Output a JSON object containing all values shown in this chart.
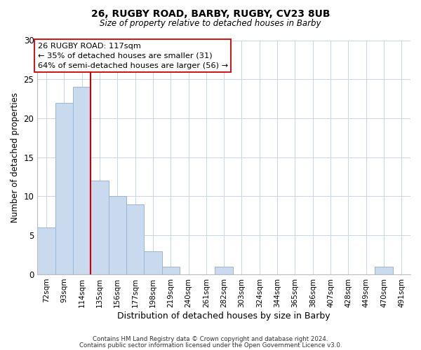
{
  "title1": "26, RUGBY ROAD, BARBY, RUGBY, CV23 8UB",
  "title2": "Size of property relative to detached houses in Barby",
  "xlabel": "Distribution of detached houses by size in Barby",
  "ylabel": "Number of detached properties",
  "bin_labels": [
    "72sqm",
    "93sqm",
    "114sqm",
    "135sqm",
    "156sqm",
    "177sqm",
    "198sqm",
    "219sqm",
    "240sqm",
    "261sqm",
    "282sqm",
    "303sqm",
    "324sqm",
    "344sqm",
    "365sqm",
    "386sqm",
    "407sqm",
    "428sqm",
    "449sqm",
    "470sqm",
    "491sqm"
  ],
  "bar_heights": [
    6,
    22,
    24,
    12,
    10,
    9,
    3,
    1,
    0,
    0,
    1,
    0,
    0,
    0,
    0,
    0,
    0,
    0,
    0,
    1,
    0
  ],
  "bar_color": "#c9d9ee",
  "bar_edge_color": "#9ab5d5",
  "red_line_x": 2,
  "red_line_color": "#cc0000",
  "annotation_text": "26 RUGBY ROAD: 117sqm\n← 35% of detached houses are smaller (31)\n64% of semi-detached houses are larger (56) →",
  "annotation_box_color": "#ffffff",
  "annotation_box_edge": "#cc0000",
  "ylim": [
    0,
    30
  ],
  "yticks": [
    0,
    5,
    10,
    15,
    20,
    25,
    30
  ],
  "footer1": "Contains HM Land Registry data © Crown copyright and database right 2024.",
  "footer2": "Contains public sector information licensed under the Open Government Licence v3.0.",
  "background_color": "#ffffff",
  "grid_color": "#c8d5e8"
}
